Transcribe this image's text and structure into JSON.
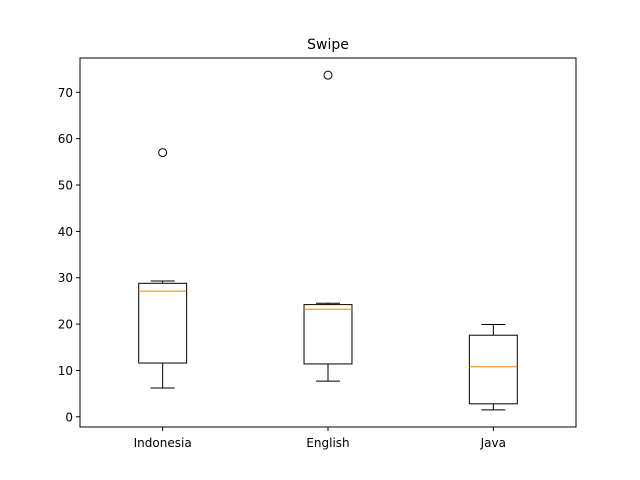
{
  "chart_data": {
    "type": "box",
    "title": "Swipe",
    "xlabel": "",
    "ylabel": "",
    "ylim": [
      -2.2,
      77.4
    ],
    "yticks": [
      0,
      10,
      20,
      30,
      40,
      50,
      60,
      70
    ],
    "grid": false,
    "categories": [
      "Indonesia",
      "English",
      "Java"
    ],
    "boxes": [
      {
        "category": "Indonesia",
        "whisker_low": 6.2,
        "q1": 11.6,
        "median": 27.1,
        "q3": 28.8,
        "whisker_high": 29.3,
        "outliers": [
          57.0
        ]
      },
      {
        "category": "English",
        "whisker_low": 7.7,
        "q1": 11.4,
        "median": 23.2,
        "q3": 24.2,
        "whisker_high": 24.5,
        "outliers": [
          73.7
        ]
      },
      {
        "category": "Java",
        "whisker_low": 1.5,
        "q1": 2.8,
        "median": 10.8,
        "q3": 17.6,
        "whisker_high": 19.9,
        "outliers": []
      }
    ],
    "colors": {
      "box": "#000000",
      "median": "#ff7f0e",
      "outlier": "#000000"
    }
  }
}
